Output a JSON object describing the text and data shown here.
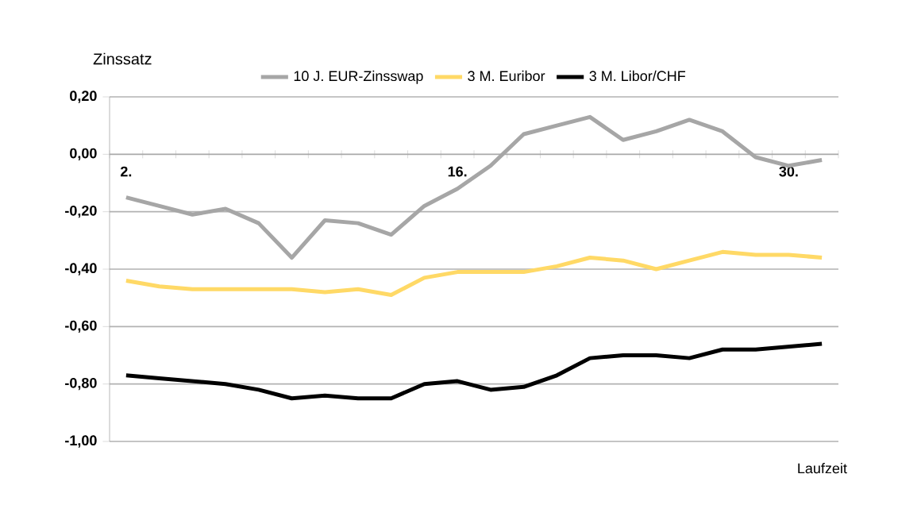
{
  "chart_data": {
    "type": "line",
    "ylabel": "Zinssatz",
    "xlabel": "Laufzeit",
    "categories": [
      "2.",
      null,
      null,
      null,
      null,
      null,
      null,
      null,
      null,
      null,
      "16.",
      null,
      null,
      null,
      null,
      null,
      null,
      null,
      null,
      null,
      "30.",
      null
    ],
    "series": [
      {
        "name": "10 J. EUR-Zinsswap",
        "color": "#a6a6a6",
        "values": [
          -0.15,
          -0.18,
          -0.21,
          -0.19,
          -0.24,
          -0.36,
          -0.23,
          -0.24,
          -0.28,
          -0.18,
          -0.12,
          -0.04,
          0.07,
          0.1,
          0.13,
          0.05,
          0.08,
          0.12,
          0.08,
          -0.01,
          -0.04,
          -0.02
        ]
      },
      {
        "name": "3 M. Euribor",
        "color": "#ffd966",
        "values": [
          -0.44,
          -0.46,
          -0.47,
          -0.47,
          -0.47,
          -0.47,
          -0.48,
          -0.47,
          -0.49,
          -0.43,
          -0.41,
          -0.41,
          -0.41,
          -0.39,
          -0.36,
          -0.37,
          -0.4,
          -0.37,
          -0.34,
          -0.35,
          -0.35,
          -0.36
        ]
      },
      {
        "name": "3 M. Libor/CHF",
        "color": "#000000",
        "values": [
          -0.77,
          -0.78,
          -0.79,
          -0.8,
          -0.82,
          -0.85,
          -0.84,
          -0.85,
          -0.85,
          -0.8,
          -0.79,
          -0.82,
          -0.81,
          -0.77,
          -0.71,
          -0.7,
          -0.7,
          -0.71,
          -0.68,
          -0.68,
          -0.67,
          -0.66
        ]
      }
    ],
    "ylim": [
      -1.0,
      0.2
    ],
    "yticks": [
      {
        "value": 0.2,
        "label": "0,20"
      },
      {
        "value": 0.0,
        "label": "0,00"
      },
      {
        "value": -0.2,
        "label": "-0,20"
      },
      {
        "value": -0.4,
        "label": "-0,40"
      },
      {
        "value": -0.6,
        "label": "-0,60"
      },
      {
        "value": -0.8,
        "label": "-0,80"
      },
      {
        "value": -1.0,
        "label": "-1,00"
      }
    ],
    "grid": "y",
    "legend": "top",
    "marker": "none",
    "line_style": "solid"
  }
}
